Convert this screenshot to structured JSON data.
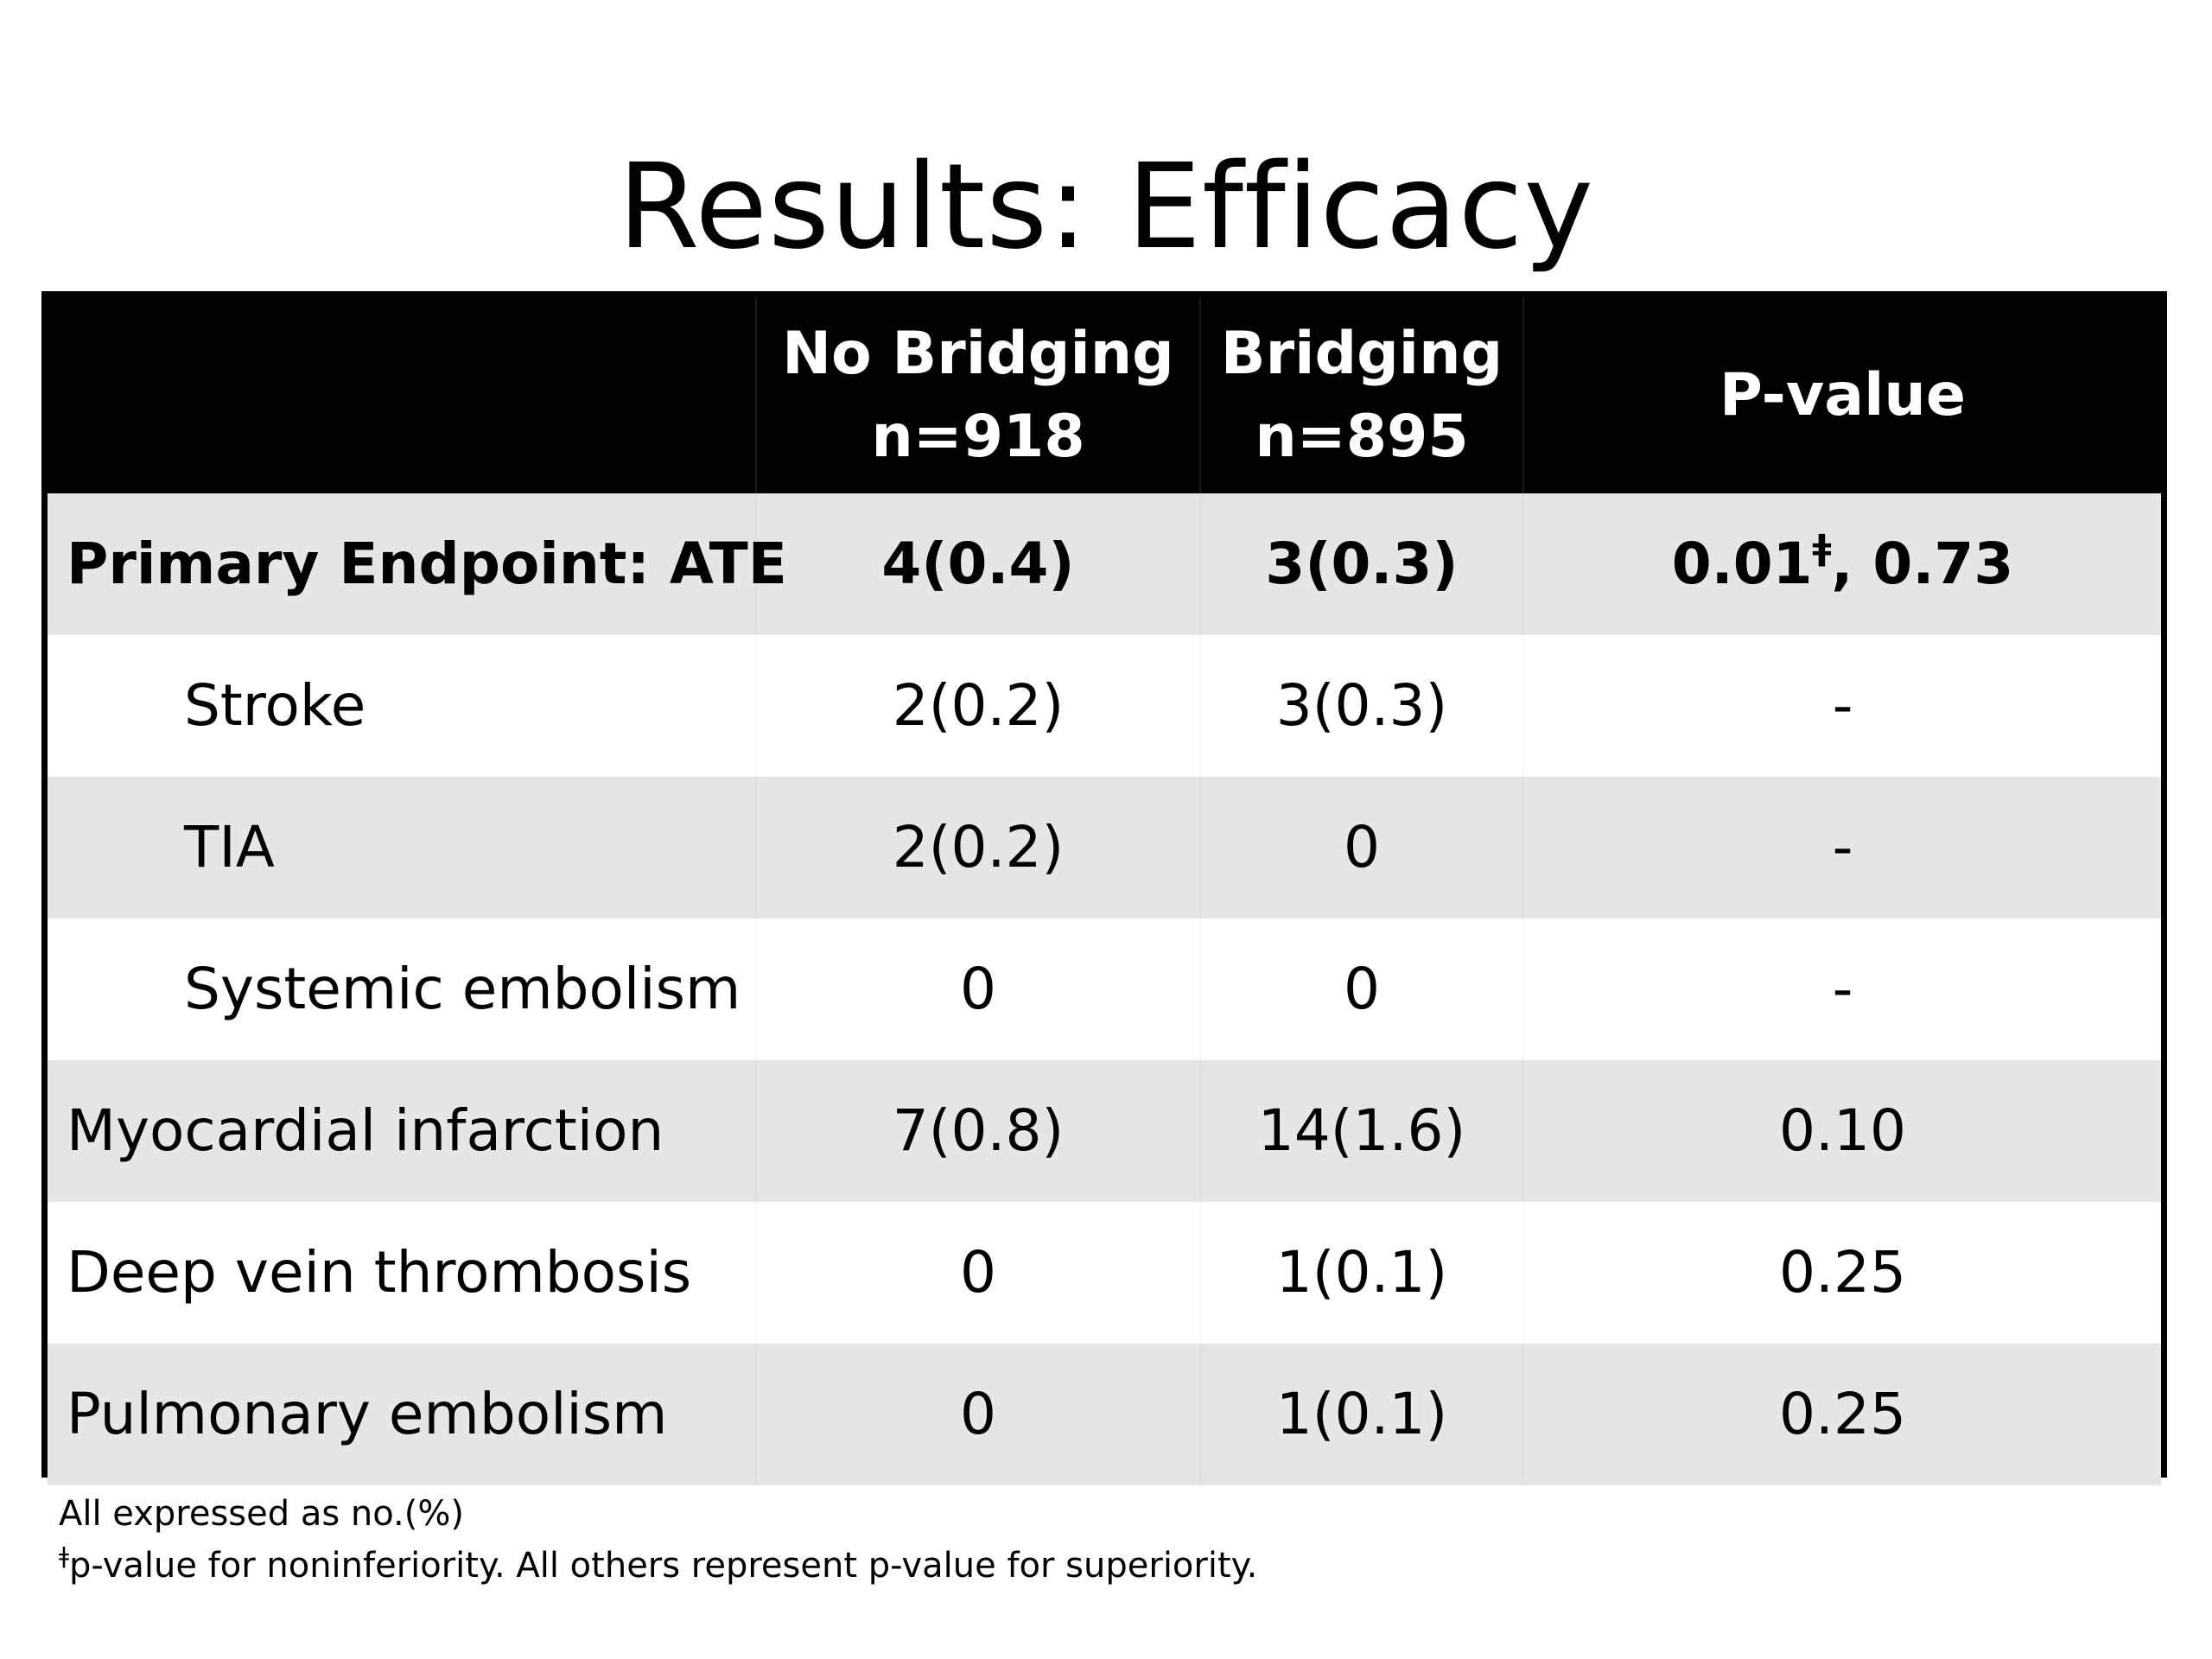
{
  "title": "Results: Efficacy",
  "table": {
    "headers": [
      {
        "line1": "",
        "line2": ""
      },
      {
        "line1": "No Bridging",
        "line2": "n=918"
      },
      {
        "line1": "Bridging",
        "line2": "n=895"
      },
      {
        "line1": "P-value",
        "line2": ""
      }
    ],
    "rows": [
      {
        "label": "Primary Endpoint: ATE",
        "no_bridging": "4(0.4)",
        "bridging": "3(0.3)",
        "p_value": "0.01",
        "p_value_mark": "ǂ",
        "p_value_rest": ", 0.73"
      },
      {
        "label": "Stroke",
        "no_bridging": "2(0.2)",
        "bridging": "3(0.3)",
        "p_value": "-"
      },
      {
        "label": "TIA",
        "no_bridging": "2(0.2)",
        "bridging": "0",
        "p_value": "-"
      },
      {
        "label": "Systemic embolism",
        "no_bridging": "0",
        "bridging": "0",
        "p_value": "-"
      },
      {
        "label": "Myocardial infarction",
        "no_bridging": "7(0.8)",
        "bridging": "14(1.6)",
        "p_value": "0.10"
      },
      {
        "label": "Deep vein thrombosis",
        "no_bridging": "0",
        "bridging": "1(0.1)",
        "p_value": "0.25"
      },
      {
        "label": "Pulmonary embolism",
        "no_bridging": "0",
        "bridging": "1(0.1)",
        "p_value": "0.25"
      }
    ]
  },
  "footnotes": {
    "line1": "All expressed as no.(%)",
    "line2_mark": "ǂ",
    "line2": "p-value for noninferiority. All others represent p-value for superiority."
  }
}
